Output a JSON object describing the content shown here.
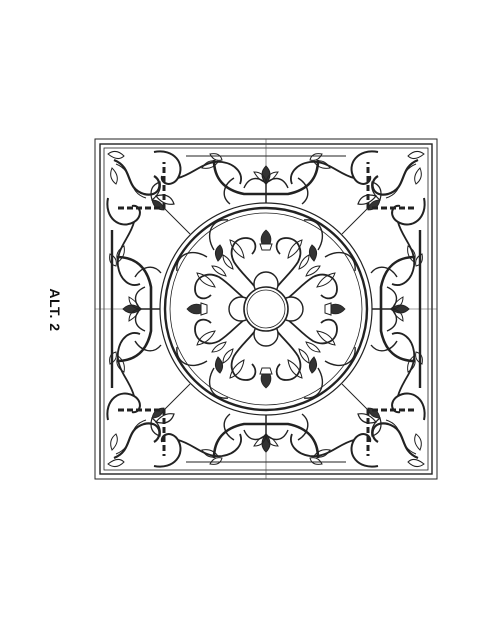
{
  "drawing": {
    "label": "ALT. 2",
    "line_color": "#222222",
    "background_color": "#ffffff"
  }
}
